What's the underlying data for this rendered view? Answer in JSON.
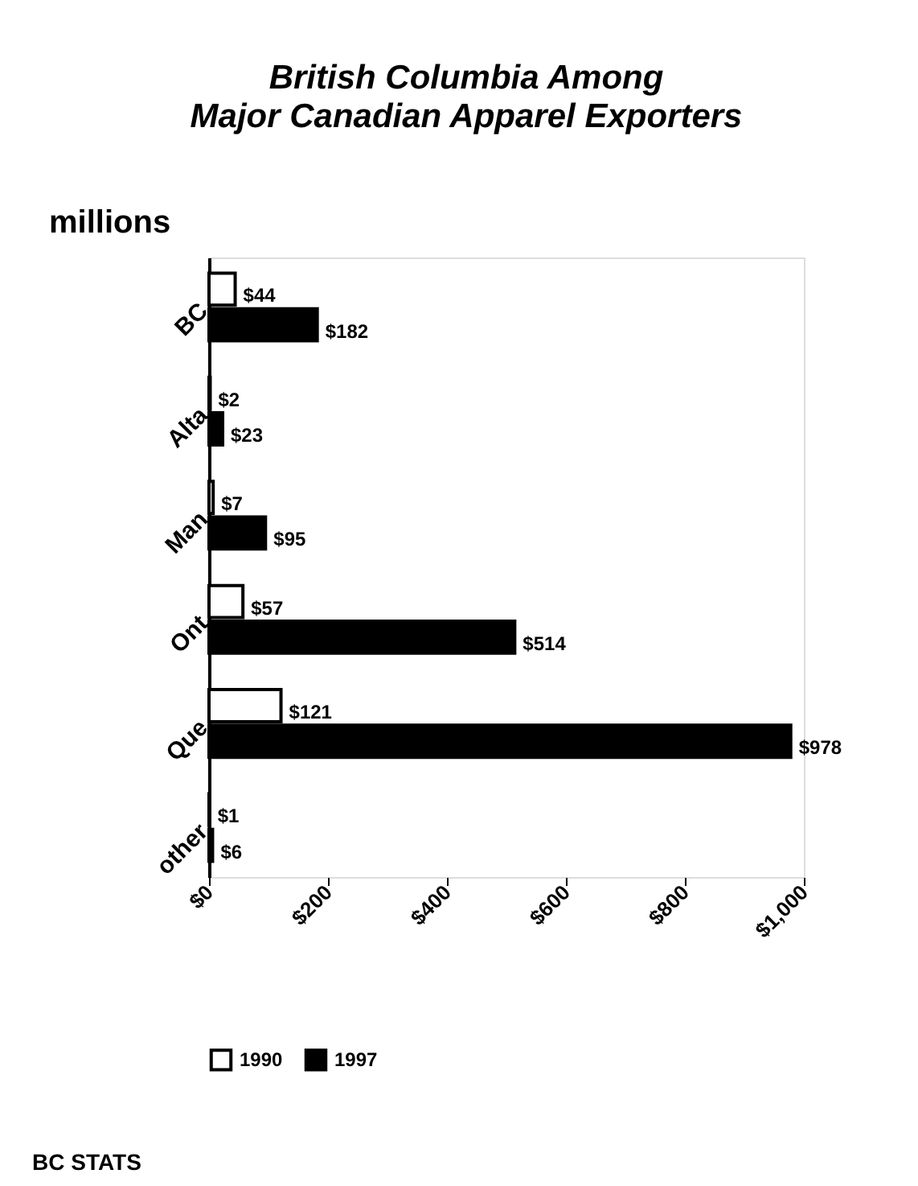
{
  "chart_data": {
    "type": "bar",
    "orientation": "horizontal",
    "title": [
      "British Columbia Among",
      "Major Canadian Apparel Exporters"
    ],
    "ylabel": "millions",
    "categories": [
      "BC",
      "Alta",
      "Man",
      "Ont",
      "Que",
      "other"
    ],
    "series": [
      {
        "name": "1990",
        "color": "#ffffff",
        "values": [
          44,
          2,
          7,
          57,
          121,
          1
        ],
        "value_labels": [
          "$44",
          "$2",
          "$7",
          "$57",
          "$121",
          "$1"
        ]
      },
      {
        "name": "1997",
        "color": "#000000",
        "values": [
          182,
          23,
          95,
          514,
          978,
          6
        ],
        "value_labels": [
          "$182",
          "$23",
          "$95",
          "$514",
          "$978",
          "$6"
        ]
      }
    ],
    "xlim": [
      0,
      1000
    ],
    "xticks": [
      {
        "value": 0,
        "label": "$0"
      },
      {
        "value": 200,
        "label": "$200"
      },
      {
        "value": 400,
        "label": "$400"
      },
      {
        "value": 600,
        "label": "$600"
      },
      {
        "value": 800,
        "label": "$800"
      },
      {
        "value": 1000,
        "label": "$1,000"
      }
    ],
    "legend": "bottom",
    "grid": false,
    "annotations": [
      "BC STATS"
    ]
  }
}
